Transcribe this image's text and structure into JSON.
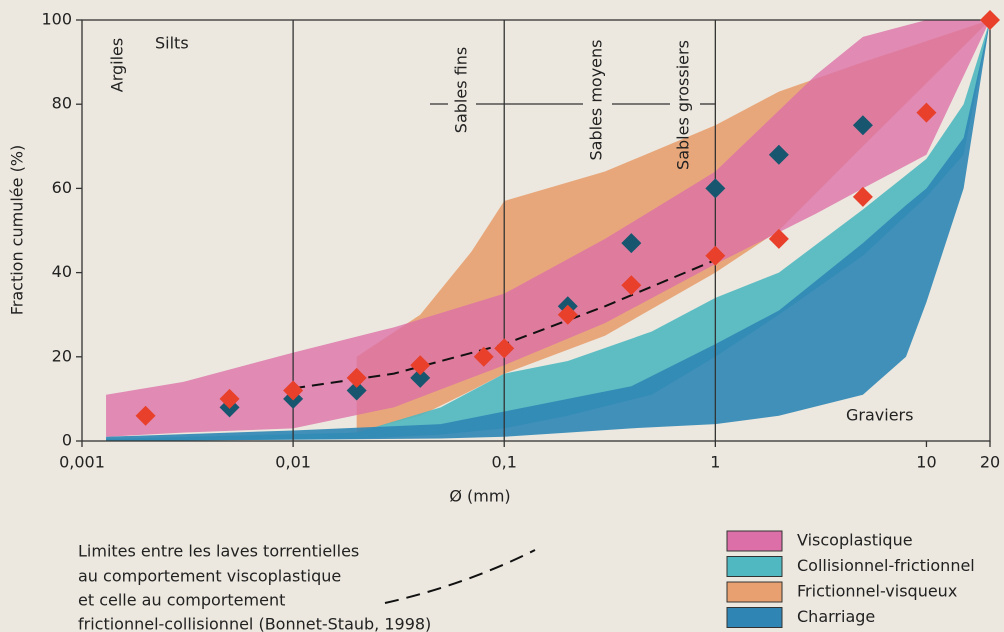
{
  "chart_data": {
    "type": "band-scatter",
    "xlabel": "Ø (mm)",
    "ylabel": "Fraction cumulée (%)",
    "xscale": "log",
    "xlim": [
      0.001,
      20
    ],
    "ylim": [
      0,
      100
    ],
    "xticks": [
      {
        "value": 0.001,
        "label": "0,001"
      },
      {
        "value": 0.01,
        "label": "0,01"
      },
      {
        "value": 0.1,
        "label": "0,1"
      },
      1,
      10,
      20
    ],
    "yticks": [
      0,
      20,
      40,
      60,
      80,
      100
    ],
    "grid_x": true,
    "legend": "bottom-right",
    "annotations": [
      "Argiles",
      "Silts",
      "Sables fins",
      "Sables moyens",
      "Sables grossiers",
      "Graviers"
    ],
    "note": [
      "Limites entre les laves torrentielles",
      "au comportement viscoplastique",
      "et celle au comportement",
      "frictionnel-collisionnel (Bonnet-Staub, 1998)"
    ],
    "bands": [
      {
        "name": "Frictionnel-visqueux",
        "color": "#e8a070",
        "x": [
          0.02,
          0.04,
          0.07,
          0.1,
          0.3,
          1,
          2,
          5,
          20
        ],
        "upper": [
          20,
          30,
          45,
          57,
          64,
          75,
          83,
          90,
          100
        ],
        "lower": [
          2,
          6,
          12,
          16,
          25,
          40,
          50,
          70,
          100
        ]
      },
      {
        "name": "Collisionnel-frictionnel",
        "color": "#4fb8c0",
        "x": [
          0.0013,
          0.02,
          0.05,
          0.1,
          0.2,
          0.5,
          1,
          2,
          5,
          10,
          15,
          20
        ],
        "upper": [
          0.5,
          2,
          8,
          16,
          19,
          26,
          34,
          40,
          55,
          67,
          80,
          100
        ],
        "lower": [
          0,
          0.5,
          1.5,
          3,
          6,
          11,
          20,
          30,
          44,
          58,
          68,
          100
        ]
      },
      {
        "name": "Charriage",
        "color": "#2f86b5",
        "x": [
          0.0013,
          0.01,
          0.05,
          0.1,
          0.2,
          0.4,
          1,
          2,
          5,
          8,
          10,
          15,
          20
        ],
        "upper": [
          1,
          2.5,
          4,
          7,
          10,
          13,
          23,
          31,
          47,
          56,
          60,
          72,
          100
        ],
        "lower": [
          0,
          0.3,
          0.6,
          1,
          2,
          3,
          4,
          6,
          11,
          20,
          33,
          60,
          100
        ]
      },
      {
        "name": "Viscoplastique",
        "color": "#dc6fa8",
        "x": [
          0.0013,
          0.003,
          0.01,
          0.03,
          0.1,
          0.3,
          1,
          3,
          5,
          10,
          20
        ],
        "upper": [
          11,
          14,
          21,
          27,
          35,
          48,
          64,
          87,
          96,
          100,
          100
        ],
        "lower": [
          1,
          2,
          3,
          8,
          18,
          28,
          42,
          54,
          60,
          68,
          100
        ]
      }
    ],
    "points": [
      {
        "color": "#17566e",
        "x": [
          0.005,
          0.01,
          0.02,
          0.04,
          0.2,
          0.4,
          1,
          2,
          5
        ],
        "values": [
          8,
          10,
          12,
          15,
          32,
          47,
          60,
          68,
          75
        ]
      },
      {
        "color": "#e8402a",
        "x": [
          0.002,
          0.005,
          0.01,
          0.02,
          0.04,
          0.08,
          0.1,
          0.2,
          0.4,
          1,
          2,
          5,
          10,
          20
        ],
        "values": [
          6,
          10,
          12,
          15,
          18,
          20,
          22,
          30,
          37,
          44,
          48,
          58,
          78,
          100
        ]
      }
    ],
    "curve": {
      "color": "#111111",
      "x": [
        0.01,
        0.03,
        0.1,
        0.3,
        1
      ],
      "values": [
        12.5,
        16,
        23,
        32,
        43
      ]
    }
  }
}
